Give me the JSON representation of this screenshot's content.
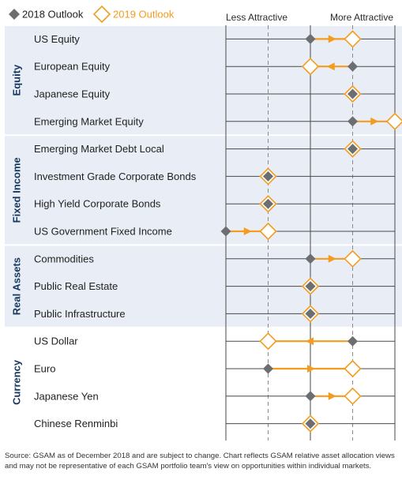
{
  "chart_data": {
    "type": "scatter",
    "legend": [
      {
        "name": "2018 Outlook",
        "marker": "filled-diamond",
        "color": "#6d6e71"
      },
      {
        "name": "2019 Outlook",
        "marker": "hollow-diamond",
        "color": "#f39c20"
      }
    ],
    "legend_placement": "top-left",
    "scale": {
      "left_label": "Less Attractive",
      "right_label": "More Attractive",
      "min": 0,
      "max": 4,
      "grid": true
    },
    "groups": [
      {
        "name": "Equity",
        "shaded": true,
        "rows": [
          {
            "label": "US Equity",
            "y2018": 2,
            "y2019": 3
          },
          {
            "label": "European Equity",
            "y2018": 3,
            "y2019": 2
          },
          {
            "label": "Japanese Equity",
            "y2018": 3,
            "y2019": 3
          },
          {
            "label": "Emerging Market Equity",
            "y2018": 3,
            "y2019": 4
          }
        ]
      },
      {
        "name": "Fixed Income",
        "shaded": true,
        "rows": [
          {
            "label": "Emerging Market Debt Local",
            "y2018": 3,
            "y2019": 3
          },
          {
            "label": "Investment Grade Corporate Bonds",
            "y2018": 1,
            "y2019": 1
          },
          {
            "label": "High Yield Corporate Bonds",
            "y2018": 1,
            "y2019": 1
          },
          {
            "label": "US Government Fixed Income",
            "y2018": 0,
            "y2019": 1
          }
        ]
      },
      {
        "name": "Real Assets",
        "shaded": true,
        "rows": [
          {
            "label": "Commodities",
            "y2018": 2,
            "y2019": 3
          },
          {
            "label": "Public Real Estate",
            "y2018": 2,
            "y2019": 2
          },
          {
            "label": "Public Infrastructure",
            "y2018": 2,
            "y2019": 2
          }
        ]
      },
      {
        "name": "Currency",
        "shaded": false,
        "rows": [
          {
            "label": "US Dollar",
            "y2018": 3,
            "y2019": 1
          },
          {
            "label": "Euro",
            "y2018": 1,
            "y2019": 3
          },
          {
            "label": "Japanese Yen",
            "y2018": 2,
            "y2019": 3
          },
          {
            "label": "Chinese Renminbi",
            "y2018": 2,
            "y2019": 2
          }
        ]
      }
    ],
    "colors": {
      "shade": "#e9eef6",
      "accent": "#f39c20",
      "gray_marker": "#6d6e71",
      "group_label": "#17375e"
    }
  },
  "source": "Source: GSAM as of December 2018 and are subject to change. Chart reflects GSAM relative asset allocation views and may not be representative of each GSAM portfolio team's view on opportunities within individual markets."
}
